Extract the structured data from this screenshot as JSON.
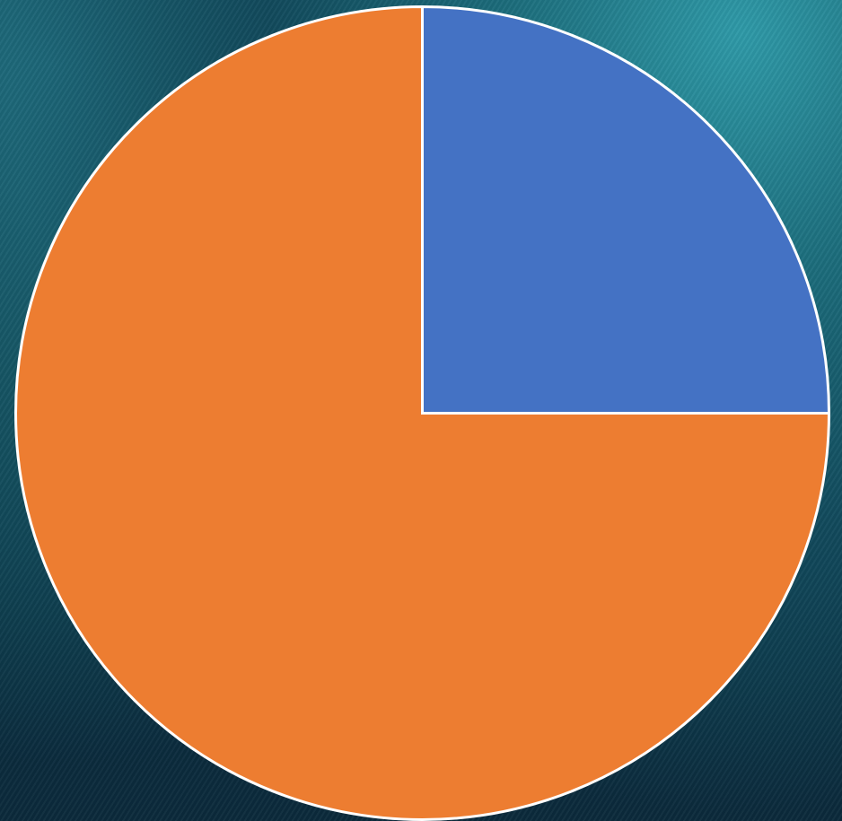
{
  "chart_data": {
    "type": "pie",
    "categories": [
      "",
      ""
    ],
    "values": [
      25,
      75
    ],
    "colors": [
      "#4472C4",
      "#ED7D31"
    ],
    "start_angle_deg": 0,
    "direction": "clockwise",
    "slice_border_color": "#FFFFFF",
    "title": "",
    "legend": "none"
  },
  "background": {
    "style": "ocean-wave-photo",
    "colors": [
      "#0C3C4E",
      "#1C6D7C",
      "#2F9AA8"
    ]
  }
}
